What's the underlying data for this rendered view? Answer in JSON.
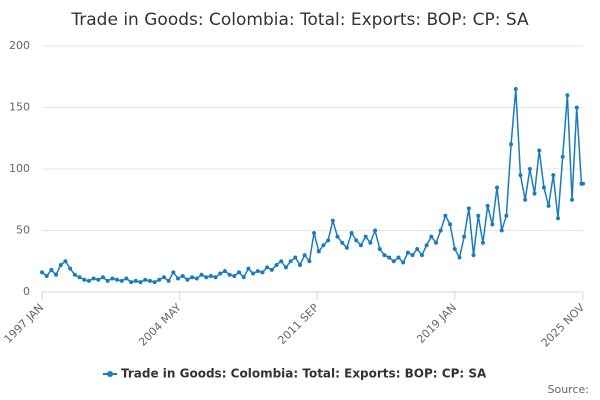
{
  "chart_data": {
    "type": "line",
    "title": "Trade in Goods: Colombia: Total: Exports: BOP: CP: SA",
    "x": [
      "1997 JAN",
      "1997 APR",
      "1997 JUL",
      "1997 OCT",
      "1998 JAN",
      "1998 APR",
      "1998 JUL",
      "1998 OCT",
      "1999 JAN",
      "1999 APR",
      "1999 JUL",
      "1999 OCT",
      "2000 JAN",
      "2000 APR",
      "2000 JUL",
      "2000 OCT",
      "2001 JAN",
      "2001 APR",
      "2001 JUL",
      "2001 OCT",
      "2002 JAN",
      "2002 APR",
      "2002 JUL",
      "2002 OCT",
      "2003 JAN",
      "2003 APR",
      "2003 JUL",
      "2003 OCT",
      "2004 JAN",
      "2004 APR",
      "2004 JUL",
      "2004 OCT",
      "2005 JAN",
      "2005 APR",
      "2005 JUL",
      "2005 OCT",
      "2006 JAN",
      "2006 APR",
      "2006 JUL",
      "2006 OCT",
      "2007 JAN",
      "2007 APR",
      "2007 JUL",
      "2007 OCT",
      "2008 JAN",
      "2008 APR",
      "2008 JUL",
      "2008 OCT",
      "2009 JAN",
      "2009 APR",
      "2009 JUL",
      "2009 OCT",
      "2010 JAN",
      "2010 APR",
      "2010 JUL",
      "2010 OCT",
      "2011 JAN",
      "2011 APR",
      "2011 JUL",
      "2011 OCT",
      "2012 JAN",
      "2012 APR",
      "2012 JUL",
      "2012 OCT",
      "2013 JAN",
      "2013 APR",
      "2013 JUL",
      "2013 OCT",
      "2014 JAN",
      "2014 APR",
      "2014 JUL",
      "2014 OCT",
      "2015 JAN",
      "2015 APR",
      "2015 JUL",
      "2015 OCT",
      "2016 JAN",
      "2016 APR",
      "2016 JUL",
      "2016 OCT",
      "2017 JAN",
      "2017 APR",
      "2017 JUL",
      "2017 OCT",
      "2018 JAN",
      "2018 APR",
      "2018 JUL",
      "2018 OCT",
      "2019 JAN",
      "2019 APR",
      "2019 JUL",
      "2019 OCT",
      "2020 JAN",
      "2020 APR",
      "2020 JUL",
      "2020 OCT",
      "2021 JAN",
      "2021 APR",
      "2021 JUL",
      "2021 OCT",
      "2022 JAN",
      "2022 APR",
      "2022 JUL",
      "2022 OCT",
      "2023 JAN",
      "2023 APR",
      "2023 JUL",
      "2023 OCT",
      "2024 JAN",
      "2024 APR",
      "2024 JUL",
      "2024 OCT",
      "2025 JAN",
      "2025 APR",
      "2025 JUL",
      "2025 OCT",
      "2025 NOV"
    ],
    "series": [
      {
        "name": "Trade in Goods: Colombia: Total: Exports: BOP: CP: SA",
        "color": "#1a7bbd",
        "values": [
          16,
          13,
          18,
          14,
          22,
          25,
          19,
          14,
          12,
          10,
          9,
          11,
          10,
          12,
          9,
          11,
          10,
          9,
          11,
          8,
          9,
          8,
          10,
          9,
          8,
          10,
          12,
          9,
          16,
          11,
          13,
          10,
          12,
          11,
          14,
          12,
          13,
          12,
          15,
          17,
          14,
          13,
          16,
          12,
          19,
          15,
          17,
          16,
          20,
          18,
          22,
          25,
          20,
          25,
          28,
          22,
          30,
          25,
          48,
          33,
          38,
          42,
          58,
          45,
          40,
          36,
          48,
          42,
          38,
          45,
          40,
          50,
          35,
          30,
          28,
          25,
          28,
          24,
          32,
          30,
          35,
          30,
          38,
          45,
          40,
          50,
          62,
          55,
          35,
          28,
          45,
          68,
          30,
          62,
          40,
          70,
          55,
          85,
          50,
          62,
          120,
          165,
          95,
          75,
          100,
          80,
          115,
          85,
          70,
          95,
          60,
          110,
          160,
          75,
          150,
          88,
          88
        ]
      }
    ],
    "xlim": [
      "1997 JAN",
      "2025 NOV"
    ],
    "xticks": [
      "1997 JAN",
      "2004 MAY",
      "2011 SEP",
      "2019 JAN",
      "2025 NOV"
    ],
    "ylim": [
      0,
      200
    ],
    "yticks": [
      0,
      50,
      100,
      150,
      200
    ],
    "grid": true,
    "source": "Source:"
  }
}
